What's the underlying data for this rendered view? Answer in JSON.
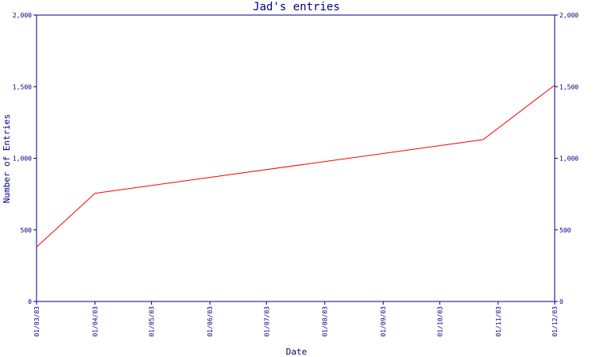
{
  "chart_data": {
    "type": "line",
    "title": "Jad's entries",
    "xlabel": "Date",
    "ylabel": "Number of Entries",
    "x_tick_labels": [
      "01/03/03",
      "01/04/03",
      "01/05/03",
      "01/06/03",
      "01/07/03",
      "01/08/03",
      "01/09/03",
      "01/10/03",
      "01/11/03",
      "01/12/03"
    ],
    "y_tick_labels": [
      "0",
      "500",
      "1,000",
      "1,500",
      "2,000"
    ],
    "ylim": [
      0,
      2000
    ],
    "xlim": [
      "2003-03-01",
      "2003-12-01"
    ],
    "grid": false,
    "colors": {
      "line": "#ff0000",
      "axis": "#000080",
      "text": "#000080"
    },
    "series": [
      {
        "x": [
          "2003-03-01",
          "2003-04-01",
          "2003-10-24",
          "2003-12-01"
        ],
        "y": [
          380,
          755,
          1130,
          1510
        ]
      }
    ]
  }
}
